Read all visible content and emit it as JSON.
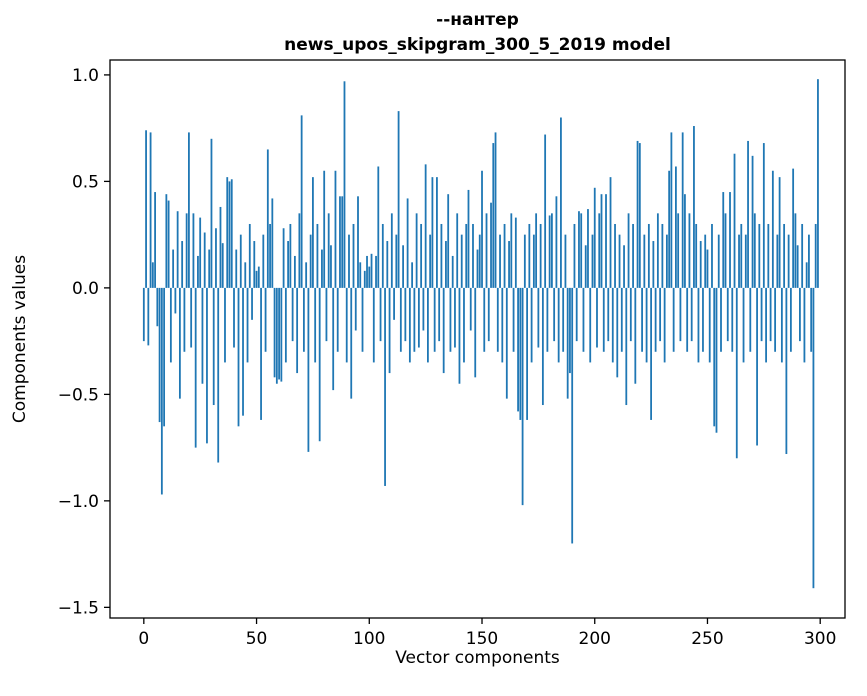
{
  "figure": {
    "title_line1": "--нантер",
    "title_line2": "news_upos_skipgram_300_5_2019 model",
    "xlabel": "Vector components",
    "ylabel": "Components values"
  },
  "chart_data": {
    "type": "bar",
    "title": "--нантер / news_upos_skipgram_300_5_2019 model",
    "xlabel": "Vector components",
    "ylabel": "Components values",
    "legend": "none",
    "grid": false,
    "bar_color": "#1f77b4",
    "xlim": [
      -15,
      311
    ],
    "ylim": [
      -1.55,
      1.07
    ],
    "xticks": [
      0,
      50,
      100,
      150,
      200,
      250,
      300
    ],
    "yticks": [
      -1.5,
      -1.0,
      -0.5,
      0.0,
      0.5,
      1.0
    ],
    "values": [
      -0.25,
      0.74,
      -0.27,
      0.73,
      0.12,
      0.45,
      -0.18,
      -0.63,
      -0.97,
      -0.65,
      0.44,
      0.41,
      -0.35,
      0.18,
      -0.12,
      0.36,
      -0.52,
      0.22,
      -0.3,
      0.35,
      0.73,
      -0.28,
      0.35,
      -0.75,
      0.15,
      0.33,
      -0.45,
      0.26,
      -0.73,
      0.18,
      0.7,
      -0.55,
      0.28,
      -0.82,
      0.38,
      0.21,
      -0.35,
      0.52,
      0.5,
      0.51,
      -0.28,
      0.18,
      -0.65,
      0.25,
      -0.6,
      0.12,
      -0.35,
      0.3,
      -0.15,
      0.22,
      0.08,
      0.1,
      -0.62,
      0.25,
      -0.3,
      0.65,
      0.3,
      0.42,
      -0.42,
      -0.45,
      -0.43,
      -0.44,
      0.28,
      -0.35,
      0.22,
      0.3,
      -0.25,
      0.15,
      -0.4,
      0.35,
      0.81,
      -0.3,
      0.12,
      -0.77,
      0.25,
      0.52,
      -0.35,
      0.3,
      -0.72,
      0.18,
      0.55,
      -0.25,
      0.35,
      0.2,
      -0.48,
      0.55,
      -0.3,
      0.43,
      0.43,
      0.97,
      -0.35,
      0.25,
      -0.52,
      0.3,
      -0.2,
      0.43,
      0.12,
      -0.3,
      0.08,
      0.15,
      0.1,
      0.16,
      -0.35,
      0.15,
      0.57,
      -0.25,
      0.3,
      -0.93,
      0.22,
      -0.4,
      0.35,
      -0.15,
      0.25,
      0.83,
      -0.3,
      0.2,
      -0.25,
      0.42,
      -0.35,
      0.12,
      -0.3,
      0.35,
      -0.28,
      0.3,
      -0.2,
      0.58,
      -0.35,
      0.25,
      0.52,
      -0.3,
      0.52,
      -0.25,
      0.3,
      -0.4,
      0.22,
      0.44,
      -0.3,
      0.15,
      -0.28,
      0.35,
      -0.45,
      0.25,
      -0.35,
      0.3,
      0.46,
      -0.2,
      0.3,
      -0.42,
      0.18,
      0.25,
      0.55,
      -0.3,
      0.35,
      -0.25,
      0.4,
      0.68,
      0.73,
      -0.3,
      0.25,
      -0.35,
      0.3,
      -0.52,
      0.22,
      0.35,
      -0.3,
      0.33,
      -0.58,
      -0.62,
      -1.02,
      0.25,
      -0.62,
      0.3,
      -0.35,
      0.25,
      0.35,
      -0.28,
      0.3,
      -0.55,
      0.72,
      -0.3,
      0.34,
      0.35,
      -0.25,
      0.43,
      -0.35,
      0.8,
      -0.3,
      0.25,
      -0.52,
      -0.4,
      -1.2,
      0.3,
      -0.25,
      0.36,
      0.35,
      -0.3,
      0.2,
      0.37,
      -0.35,
      0.25,
      0.47,
      -0.28,
      0.35,
      0.44,
      -0.3,
      0.44,
      -0.25,
      0.52,
      -0.35,
      0.3,
      -0.42,
      0.25,
      -0.3,
      0.2,
      -0.55,
      0.35,
      -0.25,
      0.3,
      -0.45,
      0.69,
      0.68,
      -0.3,
      0.25,
      -0.35,
      0.3,
      -0.62,
      0.22,
      -0.3,
      0.35,
      -0.25,
      0.3,
      -0.35,
      0.25,
      0.55,
      0.73,
      -0.3,
      0.57,
      0.35,
      -0.25,
      0.73,
      0.44,
      -0.3,
      0.35,
      -0.25,
      0.76,
      0.3,
      -0.35,
      0.22,
      -0.3,
      0.25,
      0.18,
      -0.35,
      0.3,
      -0.65,
      -0.68,
      0.25,
      -0.3,
      0.45,
      0.35,
      -0.25,
      0.45,
      -0.3,
      0.63,
      -0.8,
      0.25,
      0.3,
      -0.35,
      0.25,
      0.69,
      -0.3,
      0.62,
      0.35,
      -0.74,
      0.3,
      -0.25,
      0.68,
      -0.35,
      0.3,
      -0.25,
      0.55,
      -0.3,
      0.25,
      0.52,
      -0.35,
      0.3,
      -0.78,
      0.25,
      -0.3,
      0.56,
      0.35,
      0.2,
      -0.25,
      0.3,
      -0.35,
      0.12,
      0.25,
      -0.3,
      -1.41,
      0.3,
      0.98
    ]
  }
}
